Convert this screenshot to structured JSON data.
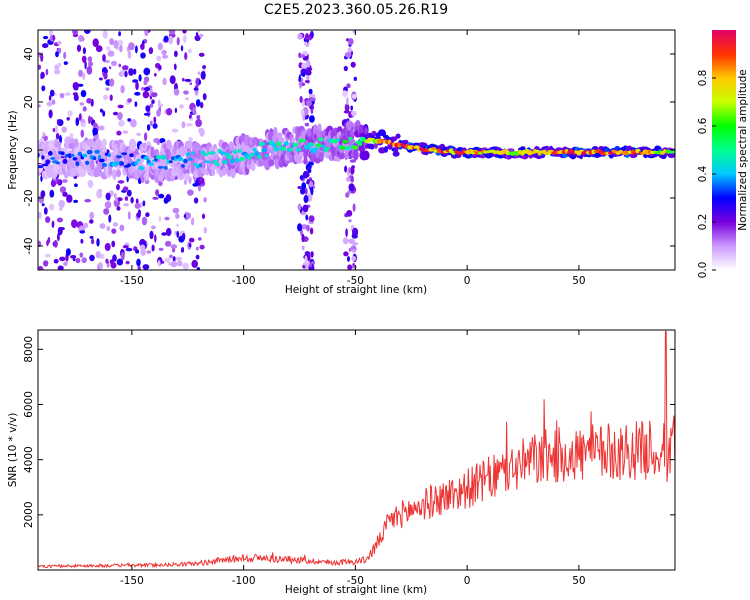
{
  "title": "C2E5.2023.360.05.26.R19",
  "chart_data": [
    {
      "type": "heatmap",
      "title": "C2E5.2023.360.05.26.R19",
      "xlabel": "Height of straight line (km)",
      "ylabel": "Frequency (Hz)",
      "xlim": [
        -192,
        93
      ],
      "ylim": [
        -50,
        50
      ],
      "x_ticks": [
        -150,
        -100,
        -50,
        0,
        50
      ],
      "y_ticks": [
        -40,
        -20,
        0,
        20,
        40
      ],
      "colorbar": {
        "label": "Normalized spectral amplitude",
        "range": [
          0.0,
          1.0
        ],
        "ticks": [
          0.0,
          0.2,
          0.4,
          0.6,
          0.8
        ],
        "tick_labels": [
          "0.0",
          "0.2",
          "0.4",
          "0.6",
          "0.8"
        ],
        "colormap": [
          "#ffffff",
          "#cc99ff",
          "#7700dd",
          "#0000ff",
          "#00c8ff",
          "#00ff90",
          "#00ff00",
          "#c8ff00",
          "#ffc800",
          "#ff3000",
          "#e0006a"
        ]
      },
      "ridge": {
        "x": [
          -190,
          -175,
          -160,
          -140,
          -120,
          -100,
          -85,
          -70,
          -60,
          -50,
          -42,
          -35,
          -25,
          -15,
          -5,
          0,
          10,
          20,
          30,
          40,
          50,
          60,
          70,
          80,
          88,
          93
        ],
        "freq_hz": [
          -4,
          -3,
          -4,
          -5,
          -4,
          -2,
          1,
          2,
          3,
          4,
          4,
          3,
          1,
          0,
          -1,
          -1,
          -1,
          -1,
          -1,
          -1,
          -1,
          -1,
          -1,
          -1,
          -1,
          -1
        ],
        "amplitude": [
          0.3,
          0.35,
          0.35,
          0.4,
          0.4,
          0.45,
          0.45,
          0.5,
          0.5,
          0.55,
          0.7,
          0.85,
          0.9,
          0.9,
          0.85,
          0.85,
          0.8,
          0.75,
          0.8,
          0.85,
          0.9,
          0.9,
          0.9,
          0.85,
          0.7,
          0.6
        ]
      }
    },
    {
      "type": "line",
      "xlabel": "Height of straight line (km)",
      "ylabel": "SNR (10 * v/v)",
      "xlim": [
        -192,
        93
      ],
      "ylim": [
        0,
        8700
      ],
      "x_ticks": [
        -150,
        -100,
        -50,
        0,
        50
      ],
      "y_ticks": [
        2000,
        4000,
        6000,
        8000
      ],
      "series": [
        {
          "name": "SNR",
          "color": "#ee3333",
          "x": [
            -192,
            -170,
            -150,
            -130,
            -120,
            -110,
            -100,
            -90,
            -80,
            -70,
            -60,
            -50,
            -45,
            -40,
            -35,
            -30,
            -20,
            -10,
            0,
            10,
            20,
            30,
            40,
            50,
            60,
            70,
            80,
            85,
            90,
            93
          ],
          "y": [
            130,
            150,
            170,
            200,
            240,
            350,
            450,
            420,
            380,
            330,
            270,
            300,
            380,
            950,
            1750,
            2000,
            2350,
            2650,
            2950,
            3300,
            3650,
            4000,
            4150,
            4200,
            4250,
            4300,
            4350,
            4400,
            3800,
            5200
          ]
        }
      ]
    }
  ]
}
